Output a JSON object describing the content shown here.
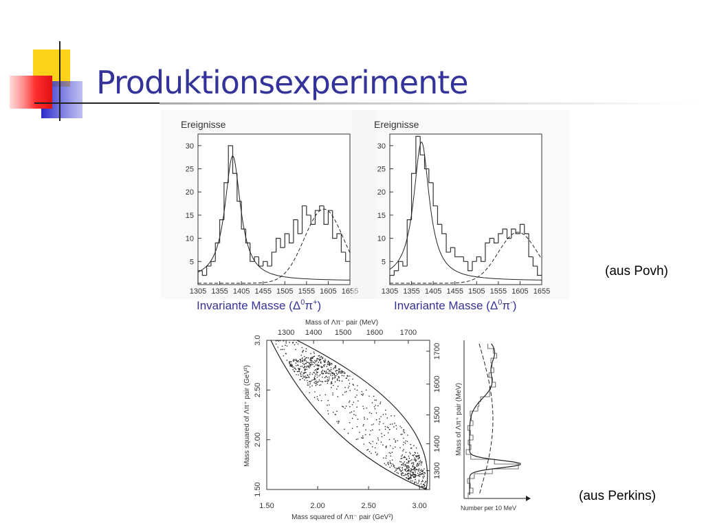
{
  "title": "Produktionsexperimente",
  "source_povh": "(aus Povh)",
  "source_perkins": "(aus Perkins)",
  "chart_data": [
    {
      "type": "histogram",
      "ylabel": "Ereignisse",
      "xlabel_parts": [
        "Invariante Masse (Δ",
        "0",
        "π",
        "+",
        ")"
      ],
      "bins": [
        1305,
        1315,
        1325,
        1335,
        1345,
        1355,
        1365,
        1375,
        1385,
        1395,
        1405,
        1415,
        1425,
        1435,
        1445,
        1455,
        1465,
        1475,
        1485,
        1495,
        1505,
        1515,
        1525,
        1535,
        1545,
        1555,
        1565,
        1575,
        1585,
        1595,
        1605,
        1615,
        1625,
        1635,
        1645,
        1655
      ],
      "values": [
        3,
        2,
        4,
        5,
        9,
        14,
        22,
        30,
        24,
        18,
        12,
        9,
        5,
        6,
        4,
        5,
        4,
        7,
        10,
        8,
        11,
        9,
        14,
        11,
        17,
        15,
        13,
        16,
        17,
        13,
        16,
        10,
        11,
        7,
        5
      ],
      "xlim": [
        1305,
        1655
      ],
      "ylim": [
        0,
        32.5
      ],
      "xticks": [
        1305,
        1355,
        1405,
        1455,
        1505,
        1555,
        1605,
        1655
      ],
      "yticks": [
        5,
        10,
        15,
        20,
        25,
        30
      ]
    },
    {
      "type": "histogram",
      "ylabel": "Ereignisse",
      "xlabel_parts": [
        "Invariante Masse (Δ",
        "0",
        "π",
        "-",
        ")"
      ],
      "bins": [
        1305,
        1315,
        1325,
        1335,
        1345,
        1355,
        1365,
        1375,
        1385,
        1395,
        1405,
        1415,
        1425,
        1435,
        1445,
        1455,
        1465,
        1475,
        1485,
        1495,
        1505,
        1515,
        1525,
        1535,
        1545,
        1555,
        1565,
        1575,
        1585,
        1595,
        1605,
        1615,
        1625,
        1635,
        1645,
        1655
      ],
      "values": [
        2,
        3,
        5,
        4,
        14,
        24,
        32,
        28,
        25,
        22,
        17,
        13,
        11,
        7,
        8,
        6,
        6,
        5,
        3,
        5,
        6,
        5,
        9,
        10,
        9,
        11,
        12,
        10,
        12,
        11,
        13,
        11,
        6,
        4,
        2
      ],
      "xlim": [
        1305,
        1655
      ],
      "ylim": [
        0,
        32.5
      ],
      "xticks": [
        1305,
        1355,
        1405,
        1455,
        1505,
        1555,
        1605,
        1655
      ],
      "yticks": [
        5,
        10,
        15,
        20,
        25,
        30
      ]
    }
  ],
  "dalitz": {
    "top_label": "Mass of Λπ⁻ pair (MeV)",
    "bottom_label": "Mass squared of Λπ⁻ pair (GeV²)",
    "left_label": "Mass squared of Λπ⁺ pair (GeV²)",
    "right_label": "Mass of Λπ⁺ pair (MeV)",
    "side_label": "Number per 10 MeV",
    "xlim": [
      1.5,
      3.1
    ],
    "ylim": [
      1.5,
      3.0
    ],
    "xticks": [
      {
        "value": 1.5,
        "label": "1.50"
      },
      {
        "value": 2.0,
        "label": "2.00"
      },
      {
        "value": 2.5,
        "label": "2.50"
      },
      {
        "value": 3.0,
        "label": "3.00"
      }
    ],
    "yticks": [
      {
        "value": 1.5,
        "label": "1.50"
      },
      {
        "value": 2.0,
        "label": "2.00"
      },
      {
        "value": 2.5,
        "label": "2.50"
      },
      {
        "value": 3.0,
        "label": "3.0"
      }
    ],
    "top_ticks": [
      1300,
      1400,
      1500,
      1600,
      1700
    ],
    "right_ticks": [
      1300,
      1400,
      1500,
      1600,
      1700
    ]
  }
}
